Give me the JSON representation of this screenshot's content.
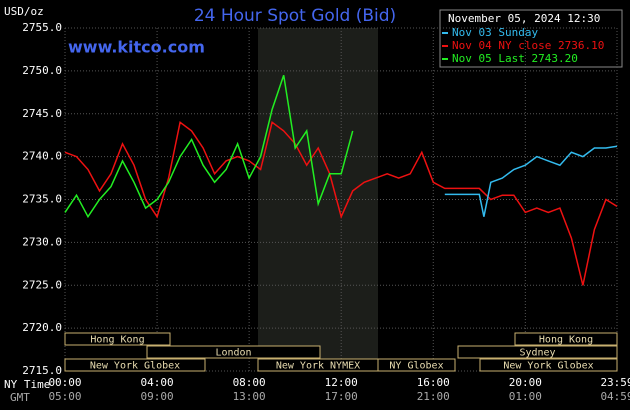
{
  "chart_data": {
    "type": "line",
    "title": "24 Hour Spot Gold (Bid)",
    "watermark": "www.kitco.com",
    "y_label": "USD/oz",
    "timestamp": "November 05, 2024 12:30",
    "x_label": "NY Time",
    "x2_label": "GMT",
    "xlim": [
      0,
      23.983
    ],
    "xticks": [
      {
        "value": 0,
        "label": "00:00"
      },
      {
        "value": 4,
        "label": "04:00"
      },
      {
        "value": 8,
        "label": "08:00"
      },
      {
        "value": 12,
        "label": "12:00"
      },
      {
        "value": 16,
        "label": "16:00"
      },
      {
        "value": 20,
        "label": "20:00"
      },
      {
        "value": 23.983,
        "label": "23:59"
      }
    ],
    "x2ticks": [
      "05:00",
      "09:00",
      "13:00",
      "17:00",
      "21:00",
      "01:00",
      "04:59"
    ],
    "ylim": [
      2715,
      2755
    ],
    "yticks": [
      {
        "value": 2715,
        "label": "2715.0"
      },
      {
        "value": 2720,
        "label": "2720.0"
      },
      {
        "value": 2725,
        "label": "2725.0"
      },
      {
        "value": 2730,
        "label": "2730.0"
      },
      {
        "value": 2735,
        "label": "2735.0"
      },
      {
        "value": 2740,
        "label": "2740.0"
      },
      {
        "value": 2745,
        "label": "2745.0"
      },
      {
        "value": 2750,
        "label": "2750.0"
      },
      {
        "value": 2755,
        "label": "2755.0"
      }
    ],
    "grid": true,
    "sessions": [
      "Hong Kong",
      "Hong Kong",
      "London",
      "Sydney",
      "New York Globex",
      "New York NYMEX",
      "NY Globex",
      "New York Globex"
    ],
    "series": [
      {
        "name": "Nov 03 Sunday",
        "color": "#33bbee",
        "x": [
          16.5,
          17,
          18,
          18.2,
          18.5,
          19,
          19.5,
          20,
          20.5,
          21,
          21.5,
          22,
          22.5,
          23,
          23.5,
          23.983
        ],
        "values": [
          2735.6,
          2735.6,
          2735.6,
          2733.0,
          2737.0,
          2737.5,
          2738.5,
          2739.0,
          2740.0,
          2739.5,
          2739.0,
          2740.5,
          2740.0,
          2741.0,
          2741.0,
          2741.2
        ]
      },
      {
        "name": "Nov 04 NY close 2736.10",
        "color": "#ee1111",
        "x": [
          0,
          0.5,
          1,
          1.5,
          2,
          2.5,
          3,
          3.5,
          4,
          4.5,
          5,
          5.5,
          6,
          6.5,
          7,
          7.5,
          8,
          8.5,
          9,
          9.5,
          10,
          10.5,
          11,
          11.5,
          12,
          12.5,
          13,
          13.5,
          14,
          14.5,
          15,
          15.5,
          16,
          16.5,
          17,
          18,
          18.5,
          19,
          19.5,
          20,
          20.5,
          21,
          21.5,
          22,
          22.5,
          23,
          23.5,
          23.983
        ],
        "values": [
          2740.5,
          2740.0,
          2738.5,
          2736.0,
          2738.0,
          2741.5,
          2739.0,
          2735.0,
          2733.0,
          2737.5,
          2744.0,
          2743.0,
          2741.0,
          2738.0,
          2739.5,
          2740.0,
          2739.5,
          2738.5,
          2744.0,
          2743.0,
          2741.5,
          2739.0,
          2741.0,
          2738.0,
          2733.0,
          2736.0,
          2737.0,
          2737.5,
          2738.0,
          2737.5,
          2738.0,
          2740.5,
          2737.0,
          2736.3,
          2736.3,
          2736.3,
          2735.0,
          2735.5,
          2735.5,
          2733.5,
          2734.0,
          2733.5,
          2734.0,
          2730.5,
          2725.0,
          2731.5,
          2735.0,
          2734.2
        ]
      },
      {
        "name": "Nov 05 Last 2743.20",
        "color": "#22ee22",
        "x": [
          0,
          0.5,
          1,
          1.5,
          2,
          2.5,
          3,
          3.5,
          4,
          4.5,
          5,
          5.5,
          6,
          6.5,
          7,
          7.5,
          8,
          8.5,
          9,
          9.5,
          10,
          10.5,
          11,
          11.5,
          12,
          12.5
        ],
        "values": [
          2733.5,
          2735.5,
          2733.0,
          2735.0,
          2736.5,
          2739.5,
          2737.0,
          2734.0,
          2735.0,
          2737.0,
          2740.0,
          2742.0,
          2739.0,
          2737.0,
          2738.5,
          2741.5,
          2737.5,
          2740.0,
          2745.5,
          2749.5,
          2741.0,
          2743.0,
          2734.5,
          2738.0,
          2738.0,
          2743.0
        ]
      }
    ]
  }
}
